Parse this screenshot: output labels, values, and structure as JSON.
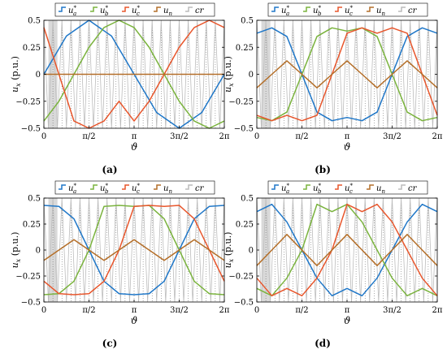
{
  "legend": {
    "entries": [
      {
        "math_base": "u",
        "math_sub": "a",
        "math_sup": "*",
        "color": "#1f77c8"
      },
      {
        "math_base": "u",
        "math_sub": "b",
        "math_sup": "*",
        "color": "#7ab33d"
      },
      {
        "math_base": "u",
        "math_sub": "c",
        "math_sup": "*",
        "color": "#e8562c"
      },
      {
        "math_base": "u",
        "math_sub": "n",
        "math_sup": "",
        "color": "#b46e28"
      },
      {
        "math_base": "cr",
        "math_sub": "",
        "math_sup": "",
        "color": "#bcbcbc"
      }
    ]
  },
  "ylabel_base": "u",
  "ylabel_sub": "x",
  "ylabel_unit": "(p.u.)",
  "xlabel": "ϑ",
  "colors": {
    "ua": "#1f77c8",
    "ub": "#7ab33d",
    "uc": "#e8562c",
    "un": "#b46e28",
    "cr": "#bcbcbc",
    "shade": "#d9d9d9"
  },
  "chart_data": [
    {
      "type": "line",
      "caption": "(a)",
      "xlim": [
        0,
        6.2832
      ],
      "ylim": [
        -0.5,
        0.5
      ],
      "x_ticks": [
        "0",
        "π/2",
        "π",
        "3π/2",
        "2π"
      ],
      "x_tick_values": [
        0,
        1.5708,
        3.1416,
        4.7124,
        6.2832
      ],
      "y_ticks": [
        "0.5",
        "0.25",
        "0",
        "−0.25",
        "−0.5"
      ],
      "y_tick_values": [
        0.5,
        0.25,
        0,
        -0.25,
        -0.5
      ],
      "grid": "dotted",
      "legend_position": "top",
      "shaded_x_range": [
        0.157,
        0.471
      ],
      "carrier": {
        "periods": 20,
        "min": -0.5,
        "max": 0.5
      },
      "series": [
        {
          "name": "u_a^*",
          "x": [
            0,
            0.785,
            1.571,
            2.356,
            3.142,
            3.927,
            4.712,
            5.498,
            6.283
          ],
          "values": [
            0,
            0.354,
            0.5,
            0.354,
            0,
            -0.354,
            -0.5,
            -0.354,
            0
          ]
        },
        {
          "name": "u_b^*",
          "x": [
            0,
            0.524,
            1.047,
            1.571,
            2.094,
            2.618,
            3.142,
            3.665,
            4.189,
            4.712,
            5.236,
            5.76,
            6.283
          ],
          "values": [
            -0.433,
            -0.25,
            0,
            0.25,
            0.433,
            0.5,
            0.433,
            0.25,
            0,
            -0.25,
            -0.433,
            -0.5,
            -0.433
          ]
        },
        {
          "name": "u_c^*",
          "x": [
            0,
            0.524,
            1.047,
            1.571,
            2.094,
            2.618,
            3.142,
            3.665,
            4.189,
            4.712,
            5.236,
            5.76,
            6.283
          ],
          "values": [
            0.433,
            0,
            -0.433,
            -0.5,
            -0.433,
            -0.25,
            -0.433,
            -0.25,
            0,
            0.25,
            0.433,
            0.5,
            0.433
          ]
        },
        {
          "name": "u_n",
          "x": [
            0,
            6.283
          ],
          "values": [
            0,
            0
          ]
        }
      ]
    },
    {
      "type": "line",
      "caption": "(b)",
      "xlim": [
        0,
        6.2832
      ],
      "ylim": [
        -0.5,
        0.5
      ],
      "x_ticks": [
        "0",
        "π/2",
        "π",
        "3π/2",
        "2π"
      ],
      "x_tick_values": [
        0,
        1.5708,
        3.1416,
        4.7124,
        6.2832
      ],
      "y_ticks": [
        "0.5",
        "0.25",
        "0",
        "−0.25",
        "−0.5"
      ],
      "y_tick_values": [
        0.5,
        0.25,
        0,
        -0.25,
        -0.5
      ],
      "grid": "dotted",
      "legend_position": "top",
      "shaded_x_range": [
        0.157,
        0.471
      ],
      "carrier": {
        "periods": 20,
        "min": -0.5,
        "max": 0.5
      },
      "series": [
        {
          "name": "u_a^*",
          "x": [
            0,
            0.524,
            1.047,
            1.571,
            2.094,
            2.618,
            3.142,
            3.665,
            4.189,
            4.712,
            5.236,
            5.76,
            6.283
          ],
          "values": [
            0.38,
            0.43,
            0.35,
            0.0,
            -0.35,
            -0.43,
            -0.4,
            -0.43,
            -0.35,
            0.0,
            0.35,
            0.43,
            0.38
          ]
        },
        {
          "name": "u_b^*",
          "x": [
            0,
            0.524,
            1.047,
            1.571,
            2.094,
            2.618,
            3.142,
            3.665,
            4.189,
            4.712,
            5.236,
            5.76,
            6.283
          ],
          "values": [
            -0.4,
            -0.43,
            -0.35,
            0.0,
            0.35,
            0.43,
            0.4,
            0.43,
            0.35,
            0.0,
            -0.35,
            -0.43,
            -0.4
          ]
        },
        {
          "name": "u_c^*",
          "x": [
            0,
            0.524,
            1.047,
            1.571,
            2.094,
            2.618,
            3.142,
            3.665,
            4.189,
            4.712,
            5.236,
            5.76,
            6.283
          ],
          "values": [
            -0.38,
            -0.43,
            -0.38,
            -0.43,
            -0.38,
            0.0,
            0.38,
            0.43,
            0.38,
            0.43,
            0.38,
            0.0,
            -0.38
          ]
        },
        {
          "name": "u_n",
          "x": [
            0,
            0.524,
            1.047,
            1.571,
            2.094,
            2.618,
            3.142,
            3.665,
            4.189,
            4.712,
            5.236,
            5.76,
            6.283
          ],
          "values": [
            -0.125,
            0,
            0.125,
            0,
            -0.125,
            0,
            0.125,
            0,
            -0.125,
            0,
            0.125,
            0,
            -0.125
          ]
        }
      ]
    },
    {
      "type": "line",
      "caption": "(c)",
      "xlim": [
        0,
        6.2832
      ],
      "ylim": [
        -0.5,
        0.5
      ],
      "x_ticks": [
        "0",
        "π/2",
        "π",
        "3π/2",
        "2π"
      ],
      "x_tick_values": [
        0,
        1.5708,
        3.1416,
        4.7124,
        6.2832
      ],
      "y_ticks": [
        "0.5",
        "0.25",
        "0",
        "−0.25",
        "−0.5"
      ],
      "y_tick_values": [
        0.5,
        0.25,
        0,
        -0.25,
        -0.5
      ],
      "grid": "dotted",
      "legend_position": "top",
      "shaded_x_range": [
        0.157,
        0.471
      ],
      "carrier": {
        "periods": 20,
        "min": -0.5,
        "max": 0.5
      },
      "series": [
        {
          "name": "u_a^*",
          "x": [
            0,
            0.524,
            1.047,
            1.571,
            2.094,
            2.618,
            3.142,
            3.665,
            4.189,
            4.712,
            5.236,
            5.76,
            6.283
          ],
          "values": [
            0.43,
            0.42,
            0.3,
            0.0,
            -0.3,
            -0.42,
            -0.43,
            -0.42,
            -0.3,
            0.0,
            0.3,
            0.42,
            0.43
          ]
        },
        {
          "name": "u_b^*",
          "x": [
            0,
            0.524,
            1.047,
            1.571,
            2.094,
            2.618,
            3.142,
            3.665,
            4.189,
            4.712,
            5.236,
            5.76,
            6.283
          ],
          "values": [
            -0.43,
            -0.42,
            -0.3,
            0.0,
            0.42,
            0.43,
            0.42,
            0.43,
            0.3,
            0.0,
            -0.3,
            -0.42,
            -0.43
          ]
        },
        {
          "name": "u_c^*",
          "x": [
            0,
            0.524,
            1.047,
            1.571,
            2.094,
            2.618,
            3.142,
            3.665,
            4.189,
            4.712,
            5.236,
            5.76,
            6.283
          ],
          "values": [
            -0.3,
            -0.42,
            -0.43,
            -0.42,
            -0.3,
            0.0,
            0.42,
            0.43,
            0.42,
            0.43,
            0.3,
            0.0,
            -0.3
          ]
        },
        {
          "name": "u_n",
          "x": [
            0,
            0.524,
            1.047,
            1.571,
            2.094,
            2.618,
            3.142,
            3.665,
            4.189,
            4.712,
            5.236,
            5.76,
            6.283
          ],
          "values": [
            -0.1,
            0,
            0.1,
            0,
            -0.1,
            0,
            0.1,
            0,
            -0.1,
            0,
            0.1,
            0,
            -0.1
          ]
        }
      ]
    },
    {
      "type": "line",
      "caption": "(d)",
      "xlim": [
        0,
        6.2832
      ],
      "ylim": [
        -0.5,
        0.5
      ],
      "x_ticks": [
        "0",
        "π/2",
        "π",
        "3π/2",
        "2π"
      ],
      "x_tick_values": [
        0,
        1.5708,
        3.1416,
        4.7124,
        6.2832
      ],
      "y_ticks": [
        "0.5",
        "0.25",
        "0",
        "−0.25",
        "−0.5"
      ],
      "y_tick_values": [
        0.5,
        0.25,
        0,
        -0.25,
        -0.5
      ],
      "grid": "dotted",
      "legend_position": "top",
      "shaded_x_range": [
        0.157,
        0.471
      ],
      "carrier": {
        "periods": 20,
        "min": -0.5,
        "max": 0.5
      },
      "series": [
        {
          "name": "u_a^*",
          "x": [
            0,
            0.524,
            1.047,
            1.571,
            2.094,
            2.618,
            3.142,
            3.665,
            4.189,
            4.712,
            5.236,
            5.76,
            6.283
          ],
          "values": [
            0.37,
            0.44,
            0.27,
            0.0,
            -0.27,
            -0.44,
            -0.37,
            -0.44,
            -0.27,
            0.0,
            0.27,
            0.44,
            0.37
          ]
        },
        {
          "name": "u_b^*",
          "x": [
            0,
            0.524,
            1.047,
            1.571,
            2.094,
            2.618,
            3.142,
            3.665,
            4.189,
            4.712,
            5.236,
            5.76,
            6.283
          ],
          "values": [
            -0.37,
            -0.44,
            -0.27,
            0.0,
            0.44,
            0.37,
            0.44,
            0.27,
            0.0,
            -0.27,
            -0.44,
            -0.37,
            -0.44
          ]
        },
        {
          "name": "u_c^*",
          "x": [
            0,
            0.524,
            1.047,
            1.571,
            2.094,
            2.618,
            3.142,
            3.665,
            4.189,
            4.712,
            5.236,
            5.76,
            6.283
          ],
          "values": [
            -0.27,
            -0.44,
            -0.37,
            -0.44,
            -0.27,
            0.0,
            0.44,
            0.37,
            0.44,
            0.27,
            0.0,
            -0.27,
            -0.44
          ]
        },
        {
          "name": "u_n",
          "x": [
            0,
            0.524,
            1.047,
            1.571,
            2.094,
            2.618,
            3.142,
            3.665,
            4.189,
            4.712,
            5.236,
            5.76,
            6.283
          ],
          "values": [
            -0.15,
            0,
            0.15,
            0,
            -0.15,
            0,
            0.15,
            0,
            -0.15,
            0,
            0.15,
            0,
            -0.15
          ]
        }
      ]
    }
  ]
}
